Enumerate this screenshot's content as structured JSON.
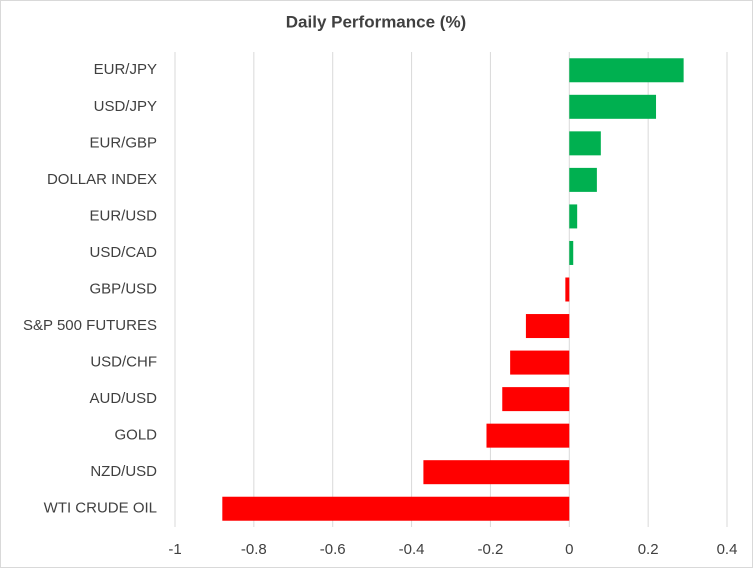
{
  "chart_data": {
    "type": "hbar",
    "title": "Daily Performance  (%)",
    "categories": [
      "EUR/JPY",
      "USD/JPY",
      "EUR/GBP",
      "DOLLAR INDEX",
      "EUR/USD",
      "USD/CAD",
      "GBP/USD",
      "S&P 500 FUTURES",
      "USD/CHF",
      "AUD/USD",
      "GOLD",
      "NZD/USD",
      "WTI CRUDE OIL"
    ],
    "values": [
      0.29,
      0.22,
      0.08,
      0.07,
      0.02,
      0.01,
      -0.01,
      -0.11,
      -0.15,
      -0.17,
      -0.21,
      -0.37,
      -0.88
    ],
    "positive_color": "#00b050",
    "negative_color": "#ff0000",
    "xlim": [
      -1,
      0.4
    ],
    "xticks": [
      -1,
      -0.8,
      -0.6,
      -0.4,
      -0.2,
      0,
      0.2,
      0.4
    ],
    "grid": true
  }
}
